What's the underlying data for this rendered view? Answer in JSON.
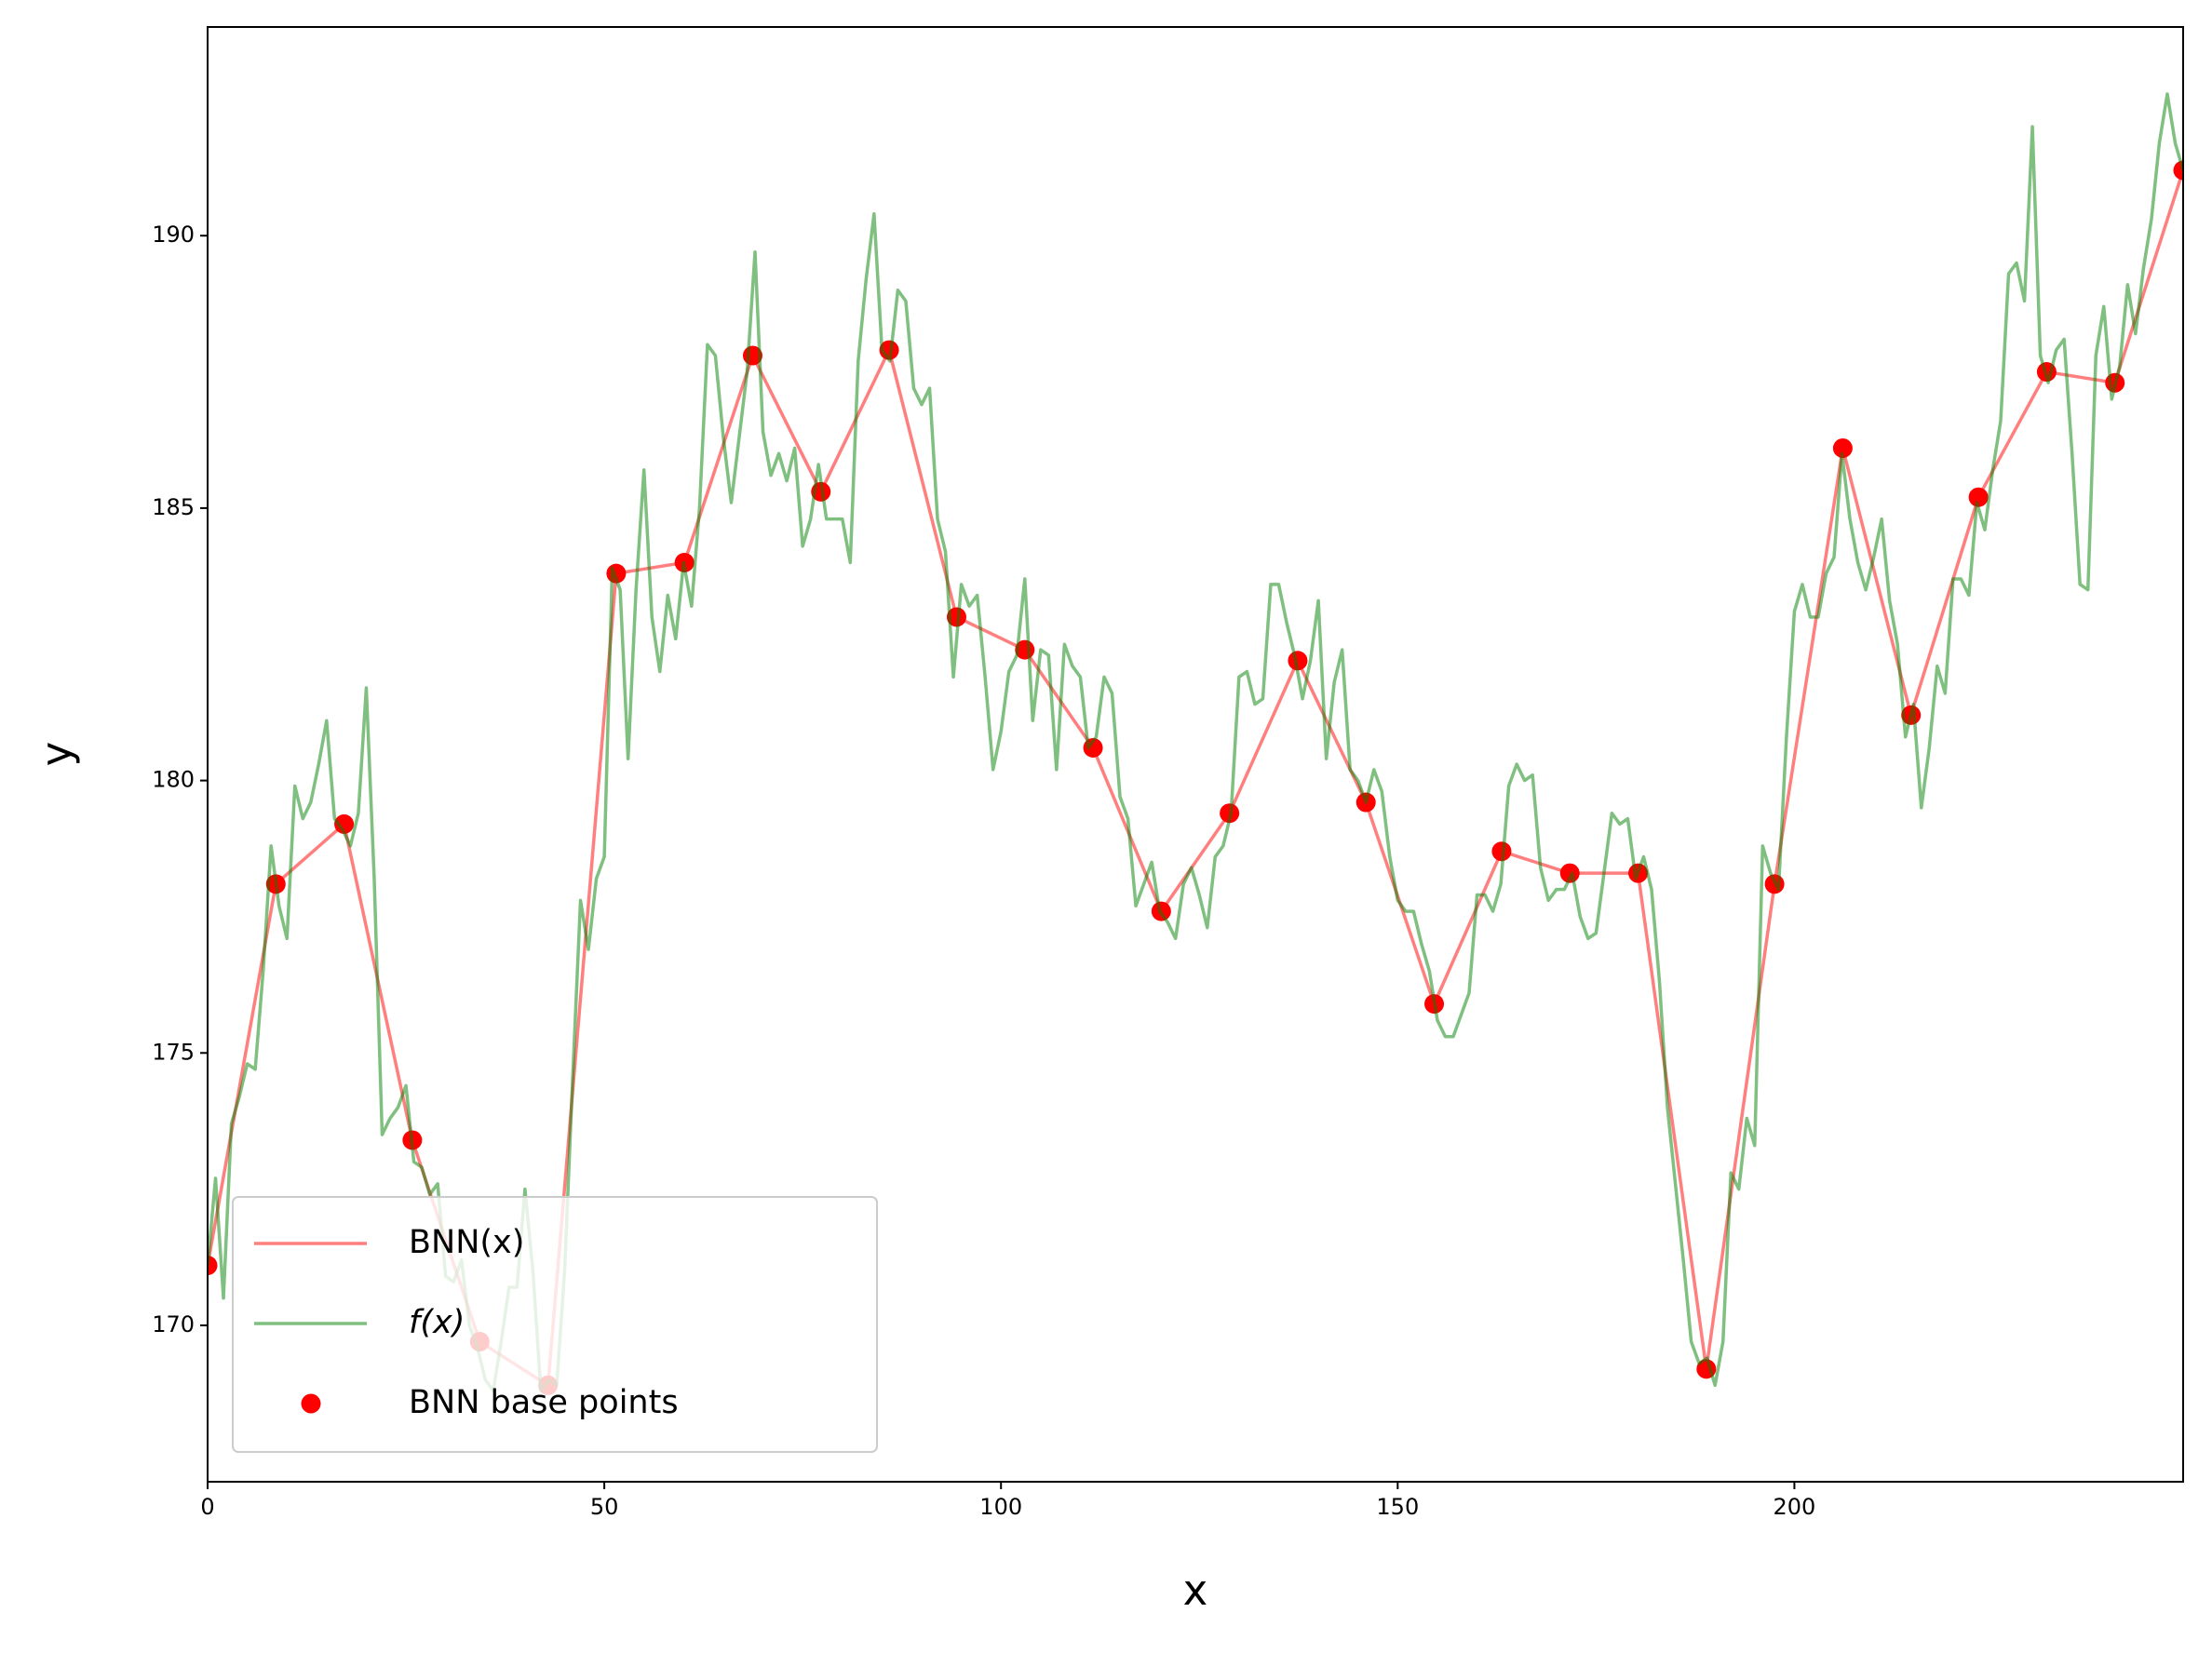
{
  "chart_data": {
    "type": "line",
    "xlabel": "x",
    "ylabel": "y",
    "xlim": [
      0,
      249
    ],
    "ylim": [
      167.13,
      193.83
    ],
    "xticks": [
      0,
      50,
      100,
      150,
      200
    ],
    "yticks": [
      170,
      175,
      180,
      185,
      190
    ],
    "legend": "lower left",
    "series": [
      {
        "name": "BNN(x)",
        "type": "line",
        "color": "#ff0000",
        "opacity": 0.5,
        "x": [
          0,
          8.6,
          17.2,
          25.8,
          34.3,
          42.9,
          51.5,
          60.1,
          68.7,
          77.3,
          85.9,
          94.4,
          103.0,
          111.6,
          120.2,
          128.8,
          137.4,
          146.0,
          154.6,
          163.1,
          171.7,
          180.3,
          188.9,
          197.5,
          206.1,
          214.7,
          223.2,
          231.8,
          240.4,
          249.0
        ],
        "values": [
          171.1,
          178.1,
          179.2,
          173.4,
          169.7,
          168.9,
          183.8,
          184.0,
          187.8,
          185.3,
          187.9,
          183.0,
          182.4,
          180.6,
          177.6,
          179.4,
          182.2,
          179.6,
          175.9,
          178.7,
          178.3,
          178.3,
          169.2,
          178.1,
          186.1,
          181.2,
          185.2,
          187.5,
          187.3,
          191.2
        ]
      },
      {
        "name": "f(x)",
        "type": "line",
        "color": "#008000",
        "opacity": 0.5,
        "x": [
          0,
          1,
          2,
          3,
          4,
          5,
          6,
          7,
          8,
          9,
          10,
          11,
          12,
          13,
          14,
          15,
          16,
          17,
          18,
          19,
          20,
          21,
          22,
          23,
          24,
          25,
          26,
          27,
          28,
          29,
          30,
          31,
          32,
          33,
          34,
          35,
          36,
          37,
          38,
          39,
          40,
          41,
          42,
          43,
          44,
          45,
          46,
          47,
          48,
          49,
          50,
          51,
          52,
          53,
          54,
          55,
          56,
          57,
          58,
          59,
          60,
          61,
          62,
          63,
          64,
          65,
          66,
          67,
          68,
          69,
          70,
          71,
          72,
          73,
          74,
          75,
          76,
          77,
          78,
          79,
          80,
          81,
          82,
          83,
          84,
          85,
          86,
          87,
          88,
          89,
          90,
          91,
          92,
          93,
          94,
          95,
          96,
          97,
          98,
          99,
          100,
          101,
          102,
          103,
          104,
          105,
          106,
          107,
          108,
          109,
          110,
          111,
          112,
          113,
          114,
          115,
          116,
          117,
          118,
          119,
          120,
          121,
          122,
          123,
          124,
          125,
          126,
          127,
          128,
          129,
          130,
          131,
          132,
          133,
          134,
          135,
          136,
          137,
          138,
          139,
          140,
          141,
          142,
          143,
          144,
          145,
          146,
          147,
          148,
          149,
          150,
          151,
          152,
          153,
          154,
          155,
          156,
          157,
          158,
          159,
          160,
          161,
          162,
          163,
          164,
          165,
          166,
          167,
          168,
          169,
          170,
          171,
          172,
          173,
          174,
          175,
          176,
          177,
          178,
          179,
          180,
          181,
          182,
          183,
          184,
          185,
          186,
          187,
          188,
          189,
          190,
          191,
          192,
          193,
          194,
          195,
          196,
          197,
          198,
          199,
          200,
          201,
          202,
          203,
          204,
          205,
          206,
          207,
          208,
          209,
          210,
          211,
          212,
          213,
          214,
          215,
          216,
          217,
          218,
          219,
          220,
          221,
          222,
          223,
          224,
          225,
          226,
          227,
          228,
          229,
          230,
          231,
          232,
          233,
          234,
          235,
          236,
          237,
          238,
          239,
          240,
          241,
          242,
          243,
          244,
          245,
          246,
          247,
          248,
          249
        ],
        "values": [
          171.1,
          172.7,
          170.5,
          173.7,
          174.2,
          174.8,
          174.7,
          176.5,
          178.8,
          177.7,
          177.1,
          179.9,
          179.3,
          179.6,
          180.3,
          181.1,
          179.3,
          179.1,
          178.8,
          179.4,
          181.7,
          178.2,
          173.5,
          173.8,
          174.0,
          174.4,
          173.0,
          172.9,
          172.4,
          172.6,
          170.9,
          170.8,
          171.2,
          170.0,
          169.6,
          169.0,
          168.8,
          169.7,
          170.7,
          170.7,
          172.5,
          171.0,
          168.8,
          169.0,
          168.9,
          171.0,
          174.5,
          177.8,
          176.9,
          178.2,
          178.6,
          183.9,
          183.5,
          180.4,
          183.5,
          185.7,
          183.0,
          182.0,
          183.4,
          182.6,
          184.0,
          183.2,
          185.0,
          188.0,
          187.8,
          186.3,
          185.1,
          186.3,
          187.5,
          189.7,
          186.4,
          185.6,
          186.0,
          185.5,
          186.1,
          184.3,
          184.8,
          185.8,
          184.8,
          184.8,
          184.8,
          184.0,
          187.7,
          189.2,
          190.4,
          187.9,
          187.7,
          189.0,
          188.8,
          187.2,
          186.9,
          187.2,
          184.8,
          184.2,
          181.9,
          183.6,
          183.2,
          183.4,
          181.9,
          180.2,
          180.9,
          182.0,
          182.3,
          183.7,
          181.1,
          182.4,
          182.3,
          180.2,
          182.5,
          182.1,
          181.9,
          180.6,
          180.8,
          181.9,
          181.6,
          179.7,
          179.3,
          177.7,
          178.1,
          178.5,
          177.6,
          177.4,
          177.1,
          178.1,
          178.4,
          177.9,
          177.3,
          178.6,
          178.8,
          179.4,
          181.9,
          182.0,
          181.4,
          181.5,
          183.6,
          183.6,
          182.9,
          182.3,
          181.5,
          182.2,
          183.3,
          180.4,
          181.8,
          182.4,
          180.2,
          180.0,
          179.6,
          180.2,
          179.8,
          178.6,
          177.8,
          177.6,
          177.6,
          177.0,
          176.5,
          175.6,
          175.3,
          175.3,
          175.7,
          176.1,
          177.9,
          177.9,
          177.6,
          178.1,
          179.9,
          180.3,
          180.0,
          180.1,
          178.4,
          177.8,
          178.0,
          178.0,
          178.3,
          177.5,
          177.1,
          177.2,
          178.3,
          179.4,
          179.2,
          179.3,
          178.2,
          178.6,
          178.0,
          176.3,
          174.0,
          172.6,
          171.2,
          169.7,
          169.3,
          169.4,
          168.9,
          169.7,
          172.8,
          172.5,
          173.8,
          173.3,
          178.8,
          178.3,
          178.0,
          180.8,
          183.1,
          183.6,
          183.0,
          183.0,
          183.8,
          184.1,
          186.0,
          184.8,
          184.0,
          183.5,
          184.1,
          184.8,
          183.3,
          182.5,
          180.8,
          181.4,
          179.5,
          180.6,
          182.1,
          181.6,
          183.7,
          183.7,
          183.4,
          185.1,
          184.6,
          185.7,
          186.6,
          189.3,
          189.5,
          188.8,
          192.0,
          187.8,
          187.3,
          187.9,
          188.1,
          186.0,
          183.6,
          183.5,
          187.8,
          188.7,
          187.0,
          187.6,
          189.1,
          188.2,
          189.4,
          190.3,
          191.7,
          192.6,
          191.7,
          191.2
        ]
      },
      {
        "name": "BNN base points",
        "type": "scatter",
        "color": "#ff0000",
        "opacity": 1,
        "x": [
          0,
          8.6,
          17.2,
          25.8,
          34.3,
          42.9,
          51.5,
          60.1,
          68.7,
          77.3,
          85.9,
          94.4,
          103.0,
          111.6,
          120.2,
          128.8,
          137.4,
          146.0,
          154.6,
          163.1,
          171.7,
          180.3,
          188.9,
          197.5,
          206.1,
          214.7,
          223.2,
          231.8,
          240.4,
          249.0
        ],
        "values": [
          171.1,
          178.1,
          179.2,
          173.4,
          169.7,
          168.9,
          183.8,
          184.0,
          187.8,
          185.3,
          187.9,
          183.0,
          182.4,
          180.6,
          177.6,
          179.4,
          182.2,
          179.6,
          175.9,
          178.7,
          178.3,
          178.3,
          169.2,
          178.1,
          186.1,
          181.2,
          185.2,
          187.5,
          187.3,
          191.2
        ]
      }
    ]
  }
}
